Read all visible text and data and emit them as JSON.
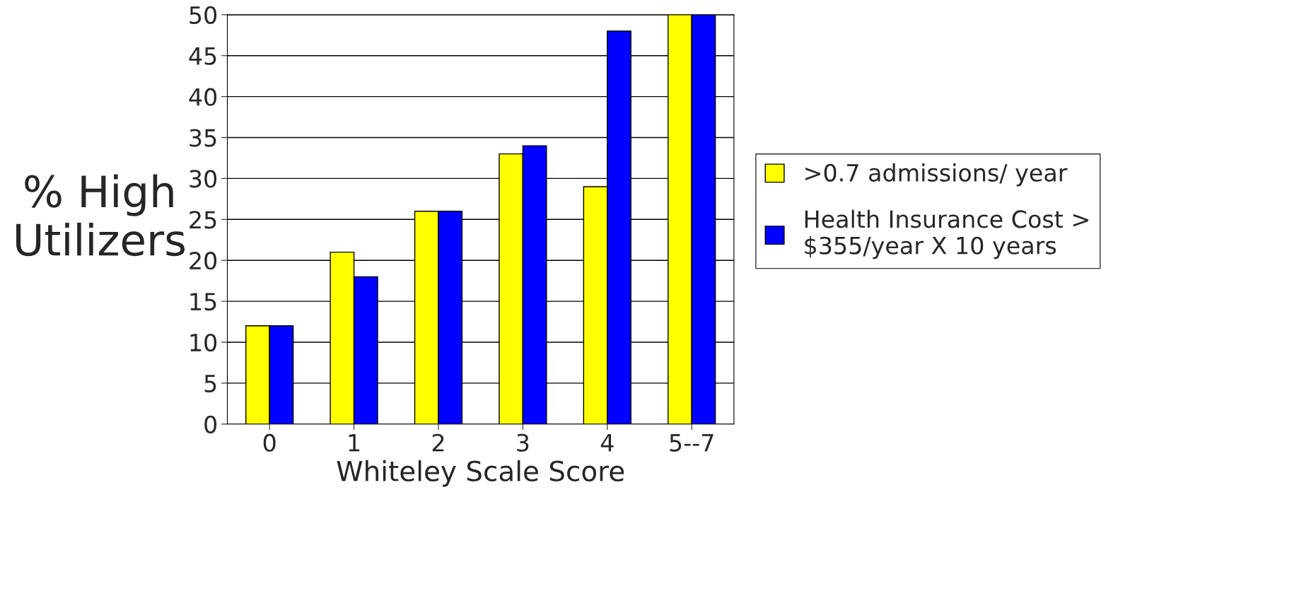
{
  "chart_data": {
    "type": "bar",
    "xlabel": "Whiteley Scale Score",
    "ylabel": "% High\nUtilizers",
    "categories": [
      "0",
      "1",
      "2",
      "3",
      "4",
      "5--7"
    ],
    "series": [
      {
        "name": ">0.7 admissions/ year",
        "color": "#ffff00",
        "values": [
          12,
          21,
          26,
          33,
          29,
          50
        ]
      },
      {
        "name": "Health Insurance Cost >\n$355/year X 10 years",
        "color": "#0000ff",
        "values": [
          12,
          18,
          26,
          34,
          48,
          50
        ]
      }
    ],
    "ylim": [
      0,
      50
    ],
    "yticks": [
      0,
      5,
      10,
      15,
      20,
      25,
      30,
      35,
      40,
      45,
      50
    ],
    "grid": "y",
    "legend": "right"
  }
}
